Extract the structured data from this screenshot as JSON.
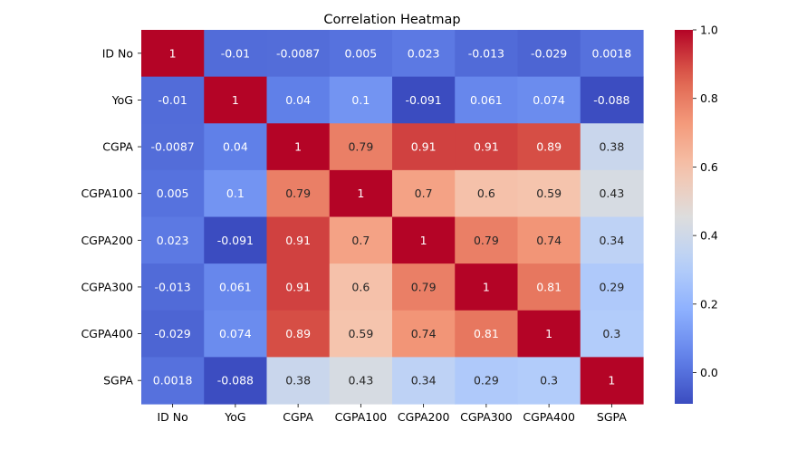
{
  "chart_data": {
    "type": "heatmap",
    "title": "Correlation Heatmap",
    "row_labels": [
      "ID No",
      "YoG",
      "CGPA",
      "CGPA100",
      "CGPA200",
      "CGPA300",
      "CGPA400",
      "SGPA"
    ],
    "col_labels": [
      "ID No",
      "YoG",
      "CGPA",
      "CGPA100",
      "CGPA200",
      "CGPA300",
      "CGPA400",
      "SGPA"
    ],
    "values": [
      [
        1,
        -0.01,
        -0.0087,
        0.005,
        0.023,
        -0.013,
        -0.029,
        0.0018
      ],
      [
        -0.01,
        1,
        0.04,
        0.1,
        -0.091,
        0.061,
        0.074,
        -0.088
      ],
      [
        -0.0087,
        0.04,
        1,
        0.79,
        0.91,
        0.91,
        0.89,
        0.38
      ],
      [
        0.005,
        0.1,
        0.79,
        1,
        0.7,
        0.6,
        0.59,
        0.43
      ],
      [
        0.023,
        -0.091,
        0.91,
        0.7,
        1,
        0.79,
        0.74,
        0.34
      ],
      [
        -0.013,
        0.061,
        0.91,
        0.6,
        0.79,
        1,
        0.81,
        0.29
      ],
      [
        -0.029,
        0.074,
        0.89,
        0.59,
        0.74,
        0.81,
        1,
        0.3
      ],
      [
        0.0018,
        -0.088,
        0.38,
        0.43,
        0.34,
        0.29,
        0.3,
        1
      ]
    ],
    "colormap": "coolwarm",
    "colorbar": {
      "vmin": -0.091,
      "vmax": 1.0,
      "ticks": [
        0.0,
        0.2,
        0.4,
        0.6,
        0.8,
        1.0
      ],
      "tick_labels": [
        "0.0",
        "0.2",
        "0.4",
        "0.6",
        "0.8",
        "1.0"
      ],
      "placement": "right"
    },
    "annotations": true,
    "grid": false
  }
}
